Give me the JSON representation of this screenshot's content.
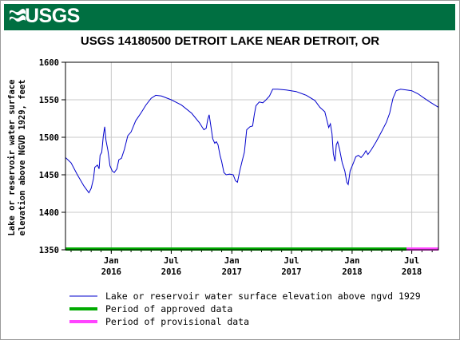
{
  "header": {
    "logo_text": "USGS",
    "title": "USGS 14180500 DETROIT LAKE NEAR DETROIT, OR"
  },
  "chart_data": {
    "type": "line",
    "title": "USGS 14180500 DETROIT LAKE NEAR DETROIT, OR",
    "ylabel_lines": [
      "Lake or reservoir water surface",
      "elevation above NGVD 1929, feet"
    ],
    "xlabel": "",
    "ylim": [
      1350,
      1600
    ],
    "xlim": [
      "2015-08-15",
      "2018-09-20"
    ],
    "y_ticks": [
      1350,
      1400,
      1450,
      1500,
      1550,
      1600
    ],
    "x_ticks": [
      {
        "date": "2016-01-01",
        "month": "Jan",
        "year": "2016"
      },
      {
        "date": "2016-07-01",
        "month": "Jul",
        "year": "2016"
      },
      {
        "date": "2017-01-01",
        "month": "Jan",
        "year": "2017"
      },
      {
        "date": "2017-07-01",
        "month": "Jul",
        "year": "2017"
      },
      {
        "date": "2018-01-01",
        "month": "Jan",
        "year": "2018"
      },
      {
        "date": "2018-07-01",
        "month": "Jul",
        "year": "2018"
      }
    ],
    "grid": true,
    "series": [
      {
        "name": "Lake or reservoir water surface elevation above ngvd 1929",
        "color": "#0000cc",
        "points": [
          [
            "2015-08-15",
            1473
          ],
          [
            "2015-09-01",
            1466
          ],
          [
            "2015-09-20",
            1450
          ],
          [
            "2015-10-10",
            1435
          ],
          [
            "2015-10-25",
            1426
          ],
          [
            "2015-11-01",
            1432
          ],
          [
            "2015-11-08",
            1445
          ],
          [
            "2015-11-12",
            1460
          ],
          [
            "2015-11-20",
            1463
          ],
          [
            "2015-11-25",
            1458
          ],
          [
            "2015-11-28",
            1476
          ],
          [
            "2015-12-03",
            1480
          ],
          [
            "2015-12-08",
            1502
          ],
          [
            "2015-12-12",
            1514
          ],
          [
            "2015-12-16",
            1496
          ],
          [
            "2015-12-22",
            1482
          ],
          [
            "2015-12-28",
            1462
          ],
          [
            "2016-01-04",
            1455
          ],
          [
            "2016-01-10",
            1453
          ],
          [
            "2016-01-18",
            1458
          ],
          [
            "2016-01-24",
            1470
          ],
          [
            "2016-02-01",
            1472
          ],
          [
            "2016-02-10",
            1484
          ],
          [
            "2016-02-20",
            1502
          ],
          [
            "2016-03-01",
            1507
          ],
          [
            "2016-03-15",
            1522
          ],
          [
            "2016-04-01",
            1533
          ],
          [
            "2016-04-15",
            1543
          ],
          [
            "2016-05-01",
            1552
          ],
          [
            "2016-05-15",
            1556
          ],
          [
            "2016-06-01",
            1555
          ],
          [
            "2016-07-01",
            1550
          ],
          [
            "2016-08-01",
            1543
          ],
          [
            "2016-09-01",
            1532
          ],
          [
            "2016-09-25",
            1519
          ],
          [
            "2016-10-08",
            1510
          ],
          [
            "2016-10-15",
            1512
          ],
          [
            "2016-10-20",
            1524
          ],
          [
            "2016-10-24",
            1530
          ],
          [
            "2016-10-29",
            1516
          ],
          [
            "2016-11-04",
            1498
          ],
          [
            "2016-11-10",
            1492
          ],
          [
            "2016-11-15",
            1494
          ],
          [
            "2016-11-20",
            1490
          ],
          [
            "2016-11-26",
            1476
          ],
          [
            "2016-12-01",
            1468
          ],
          [
            "2016-12-08",
            1453
          ],
          [
            "2016-12-15",
            1450
          ],
          [
            "2016-12-25",
            1451
          ],
          [
            "2017-01-05",
            1450
          ],
          [
            "2017-01-12",
            1442
          ],
          [
            "2017-01-18",
            1440
          ],
          [
            "2017-01-25",
            1455
          ],
          [
            "2017-02-01",
            1468
          ],
          [
            "2017-02-08",
            1480
          ],
          [
            "2017-02-15",
            1510
          ],
          [
            "2017-02-25",
            1514
          ],
          [
            "2017-03-05",
            1515
          ],
          [
            "2017-03-10",
            1530
          ],
          [
            "2017-03-15",
            1542
          ],
          [
            "2017-03-25",
            1547
          ],
          [
            "2017-04-05",
            1546
          ],
          [
            "2017-04-15",
            1550
          ],
          [
            "2017-04-25",
            1555
          ],
          [
            "2017-05-05",
            1564
          ],
          [
            "2017-05-20",
            1564
          ],
          [
            "2017-06-15",
            1563
          ],
          [
            "2017-07-15",
            1561
          ],
          [
            "2017-08-15",
            1556
          ],
          [
            "2017-09-10",
            1549
          ],
          [
            "2017-09-25",
            1540
          ],
          [
            "2017-10-10",
            1534
          ],
          [
            "2017-10-18",
            1520
          ],
          [
            "2017-10-22",
            1513
          ],
          [
            "2017-10-27",
            1518
          ],
          [
            "2017-11-01",
            1505
          ],
          [
            "2017-11-05",
            1478
          ],
          [
            "2017-11-10",
            1468
          ],
          [
            "2017-11-14",
            1490
          ],
          [
            "2017-11-18",
            1494
          ],
          [
            "2017-11-24",
            1484
          ],
          [
            "2017-12-02",
            1466
          ],
          [
            "2017-12-10",
            1455
          ],
          [
            "2017-12-16",
            1440
          ],
          [
            "2017-12-20",
            1437
          ],
          [
            "2017-12-26",
            1455
          ],
          [
            "2018-01-05",
            1466
          ],
          [
            "2018-01-12",
            1474
          ],
          [
            "2018-01-20",
            1476
          ],
          [
            "2018-01-28",
            1473
          ],
          [
            "2018-02-05",
            1477
          ],
          [
            "2018-02-12",
            1482
          ],
          [
            "2018-02-18",
            1477
          ],
          [
            "2018-03-01",
            1484
          ],
          [
            "2018-03-15",
            1494
          ],
          [
            "2018-04-01",
            1508
          ],
          [
            "2018-04-15",
            1520
          ],
          [
            "2018-04-25",
            1532
          ],
          [
            "2018-05-05",
            1552
          ],
          [
            "2018-05-15",
            1562
          ],
          [
            "2018-05-28",
            1564
          ],
          [
            "2018-06-15",
            1563
          ],
          [
            "2018-07-01",
            1562
          ],
          [
            "2018-07-20",
            1558
          ],
          [
            "2018-08-05",
            1553
          ],
          [
            "2018-08-25",
            1547
          ],
          [
            "2018-09-20",
            1540
          ]
        ]
      }
    ],
    "approval_bar": [
      {
        "label": "Period of approved data",
        "color": "#00aa00",
        "from": "2015-08-15",
        "to": "2018-06-15"
      },
      {
        "label": "Period of provisional data",
        "color": "#ff44ff",
        "from": "2018-06-15",
        "to": "2018-09-20"
      }
    ],
    "legend": [
      {
        "label": "Lake or reservoir water surface elevation above ngvd 1929",
        "color": "#0000cc",
        "kind": "line-thin"
      },
      {
        "label": "Period of approved data",
        "color": "#00aa00",
        "kind": "line-thick"
      },
      {
        "label": "Period of provisional data",
        "color": "#ff44ff",
        "kind": "line-thick"
      }
    ]
  }
}
